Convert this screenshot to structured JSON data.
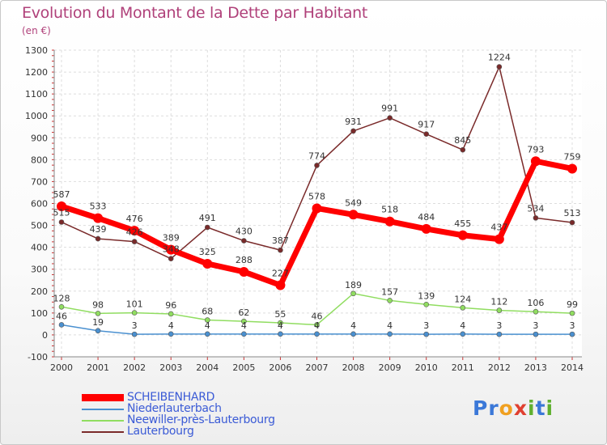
{
  "title": "Evolution du Montant de la Dette par Habitant",
  "subtitle": "(en €)",
  "logo": {
    "letters": [
      "P",
      "r",
      "o",
      "x",
      "i",
      "t",
      "i"
    ],
    "colors": [
      "#3b78d8",
      "#3b78d8",
      "#f0a020",
      "#e04030",
      "#60b030",
      "#3b78d8",
      "#60b030"
    ]
  },
  "chart_data": {
    "type": "line",
    "x": [
      "2000",
      "2001",
      "2002",
      "2003",
      "2004",
      "2005",
      "2006",
      "2007",
      "2008",
      "2009",
      "2010",
      "2011",
      "2012",
      "2013",
      "2014"
    ],
    "ylim": [
      -100,
      1300
    ],
    "yticks": [
      -100,
      0,
      100,
      200,
      300,
      400,
      500,
      600,
      700,
      800,
      900,
      1000,
      1100,
      1200,
      1300
    ],
    "grid": true,
    "legend_position": "bottom-left",
    "series": [
      {
        "name": "SCHEIBENHARD",
        "color": "#ff0000",
        "values": [
          587,
          533,
          476,
          389,
          325,
          288,
          227,
          578,
          549,
          518,
          484,
          455,
          437,
          793,
          759
        ],
        "labels": [
          "587",
          "533",
          "476",
          "389",
          "325",
          "288",
          "227",
          "578",
          "549",
          "518",
          "484",
          "455",
          "437",
          "793",
          "759"
        ]
      },
      {
        "name": "Niederlauterbach",
        "color": "#4a90d0",
        "values": [
          46,
          19,
          3,
          4,
          4,
          4,
          4,
          4,
          4,
          4,
          3,
          4,
          3,
          3,
          3
        ],
        "labels": [
          "46",
          "19",
          "3",
          "4",
          "4",
          "4",
          "4",
          "4",
          "4",
          "4",
          "3",
          "4",
          "3",
          "3",
          "3"
        ]
      },
      {
        "name": "Neewiller-près-Lauterbourg",
        "color": "#90dd60",
        "values": [
          128,
          98,
          101,
          96,
          68,
          62,
          55,
          46,
          189,
          157,
          139,
          124,
          112,
          106,
          99
        ],
        "labels": [
          "128",
          "98",
          "101",
          "96",
          "68",
          "62",
          "55",
          "46",
          "189",
          "157",
          "139",
          "124",
          "112",
          "106",
          "99"
        ]
      },
      {
        "name": "Lauterbourg",
        "color": "#7a2a2a",
        "values": [
          515,
          439,
          426,
          348,
          491,
          430,
          387,
          774,
          931,
          991,
          917,
          845,
          1224,
          534,
          513
        ],
        "labels": [
          "515",
          "439",
          "426",
          "348",
          "491",
          "430",
          "387",
          "774",
          "931",
          "991",
          "917",
          "845",
          "1224",
          "534",
          "513"
        ]
      }
    ]
  }
}
